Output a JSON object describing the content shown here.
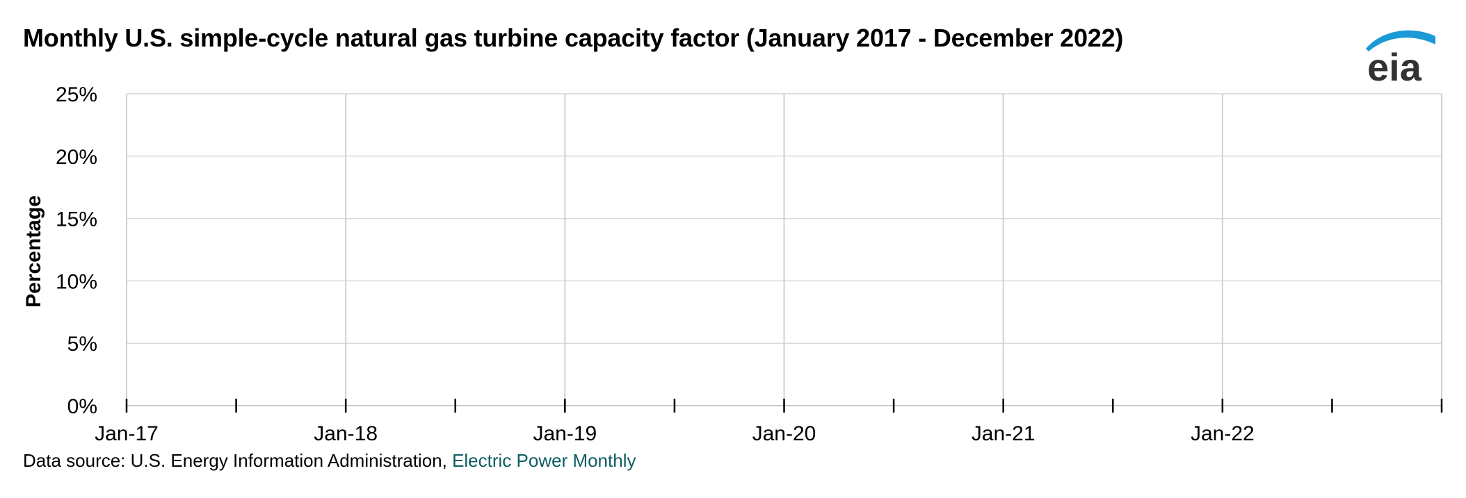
{
  "title": "Monthly U.S. simple-cycle natural gas turbine capacity factor (January 2017 - December 2022)",
  "logo": {
    "text": "eia",
    "icon": "eia-logo-icon",
    "swoosh_color": "#1a9ad6",
    "text_color": "#333333"
  },
  "source": {
    "prefix": "Data source: U.S. Energy Information Administration, ",
    "link_text": "Electric Power Monthly",
    "link_color": "#0d5c63"
  },
  "chart_data": {
    "type": "line",
    "title": "Monthly U.S. simple-cycle natural gas turbine capacity factor (January 2017 - December 2022)",
    "xlabel": "",
    "ylabel": "Percentage",
    "x_tick_labels": [
      "Jan-17",
      "Jan-18",
      "Jan-19",
      "Jan-20",
      "Jan-21",
      "Jan-22"
    ],
    "x_range": [
      "2017-01",
      "2023-01"
    ],
    "y_tick_labels": [
      "0%",
      "5%",
      "10%",
      "15%",
      "20%",
      "25%"
    ],
    "y_ticks": [
      0,
      5,
      10,
      15,
      20,
      25
    ],
    "ylim": [
      0,
      25
    ],
    "grid": true,
    "series": []
  }
}
